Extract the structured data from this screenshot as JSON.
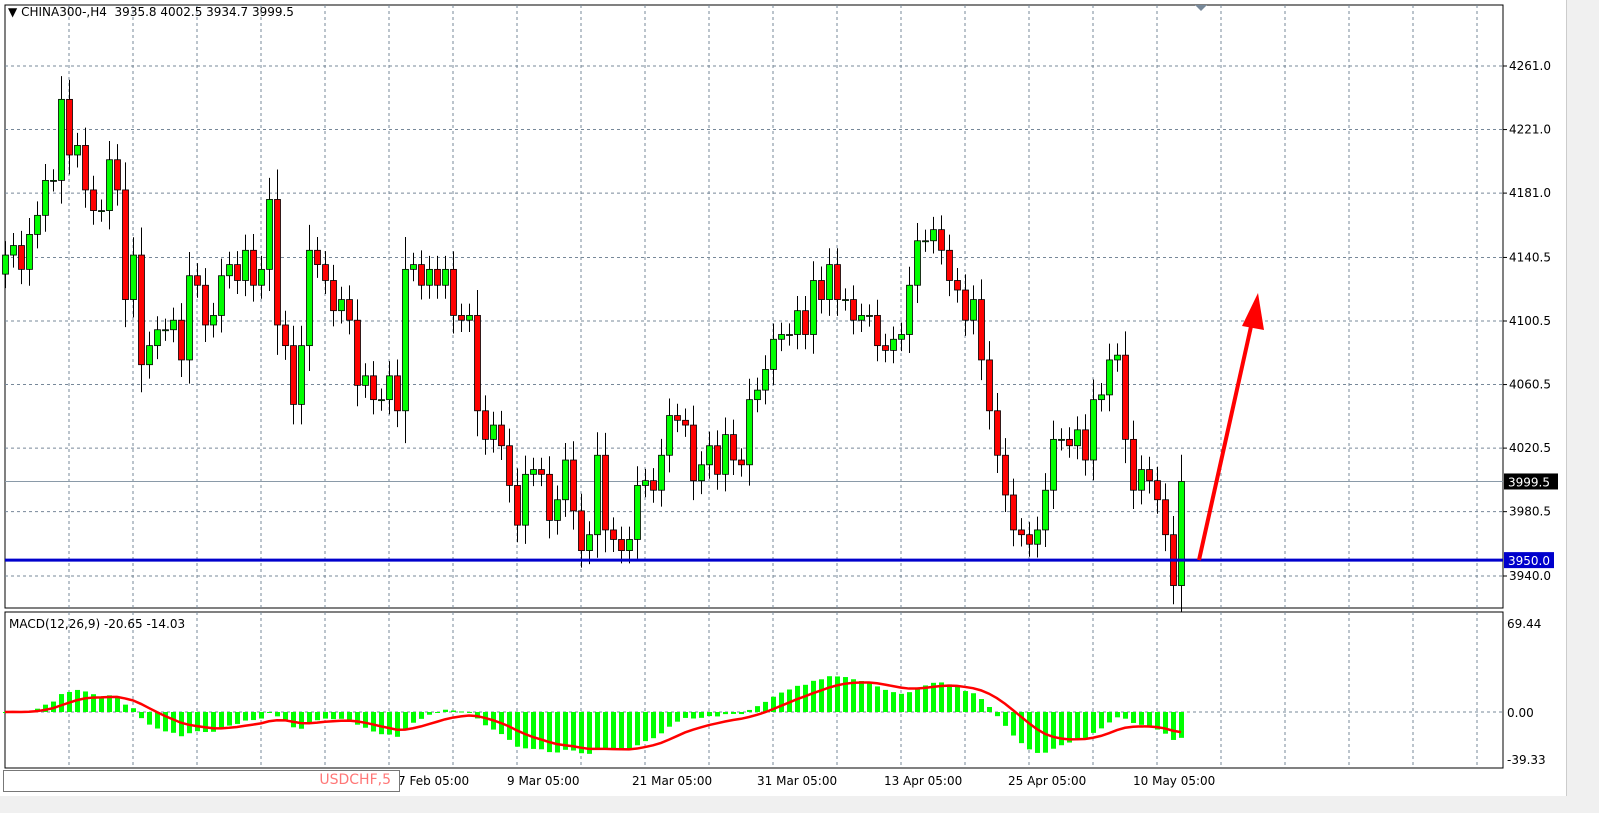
{
  "header": {
    "symbol": "CHINA300-,H4",
    "ohlc": "3935.8 4002.5 3934.7 3999.5",
    "menu_icon": "triangle-down-icon"
  },
  "indicator": {
    "label": "MACD(12,26,9) -20.65 -14.03",
    "fast": 12,
    "slow": 26,
    "signal": 9
  },
  "overlay_symbol": "USDCHF,5",
  "colors": {
    "bull": "#00ff00",
    "bear": "#ff0000",
    "outline": "#000000",
    "hline": "#0000cc",
    "macd_hist": "#00ff00",
    "signal": "#ff0000",
    "arrow": "#ff0000",
    "grid": "#778899"
  },
  "chart_data": {
    "type": "candlestick",
    "price_ticks": [
      "4261.0",
      "4221.0",
      "4181.0",
      "4140.5",
      "4100.5",
      "4060.5",
      "4020.5",
      "3980.5",
      "3940.0"
    ],
    "price_range": [
      3928,
      4290
    ],
    "current_price": "3999.5",
    "horizontal_line": "3950.0",
    "macd_ticks": [
      "69.44",
      "0.00",
      "-39.33"
    ],
    "time_labels": [
      "7 Feb 05:00",
      "9 Mar 05:00",
      "21 Mar 05:00",
      "31 Mar 05:00",
      "13 Apr 05:00",
      "25 Apr 05:00",
      "10 May 05:00"
    ],
    "first_open": 4130,
    "closes": [
      4142,
      4148,
      4133,
      4155,
      4167,
      4189,
      4189,
      4240,
      4205,
      4211,
      4183,
      4170,
      4170,
      4202,
      4183,
      4114,
      4142,
      4073,
      4085,
      4095,
      4095,
      4101,
      4076,
      4129,
      4123,
      4098,
      4104,
      4129,
      4136,
      4126,
      4145,
      4123,
      4133,
      4177,
      4098,
      4085,
      4048,
      4085,
      4145,
      4136,
      4126,
      4107,
      4114,
      4101,
      4060,
      4066,
      4051,
      4051,
      4066,
      4044,
      4133,
      4136,
      4123,
      4133,
      4123,
      4133,
      4104,
      4101,
      4104,
      4044,
      4026,
      4035,
      4022,
      3997,
      3972,
      4004,
      4007,
      4004,
      3975,
      3988,
      4013,
      3981,
      3956,
      3966,
      4016,
      3969,
      3963,
      3956,
      3963,
      3997,
      4000,
      3994,
      4016,
      4041,
      4038,
      4035,
      4000,
      4010,
      4022,
      4004,
      4029,
      4013,
      4010,
      4051,
      4057,
      4070,
      4089,
      4092,
      4092,
      4107,
      4092,
      4126,
      4114,
      4136,
      4114,
      4114,
      4101,
      4104,
      4104,
      4085,
      4082,
      4089,
      4092,
      4123,
      4151,
      4151,
      4158,
      4145,
      4126,
      4120,
      4101,
      4114,
      4076,
      4044,
      4016,
      3991,
      3969,
      3966,
      3960,
      3969,
      3994,
      4026,
      4026,
      4022,
      4032,
      4013,
      4051,
      4054,
      4076,
      4079,
      4026,
      3994,
      4007,
      4000,
      3988,
      3966,
      3934,
      3999.5
    ],
    "annotation": "red arrow pointing up from 3950 level"
  }
}
